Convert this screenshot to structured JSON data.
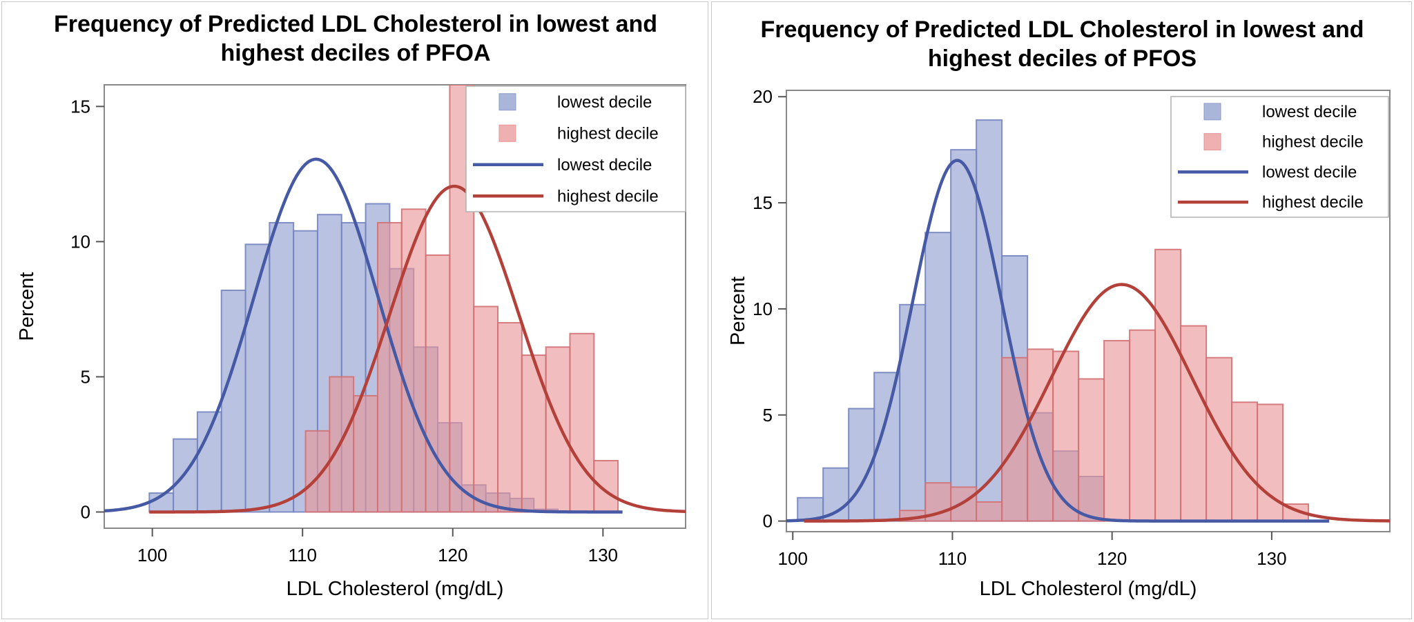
{
  "chart_data": [
    {
      "type": "bar",
      "title_lines": [
        "Frequency of Predicted LDL Cholesterol in lowest and",
        "highest deciles of PFOA"
      ],
      "xlabel": "LDL Cholesterol (mg/dL)",
      "ylabel": "Percent",
      "xlim": [
        96.8,
        135.5
      ],
      "ylim": [
        -0.6,
        15.8
      ],
      "xticks": [
        "100",
        "110",
        "120",
        "130"
      ],
      "yticks": [
        "0",
        "5",
        "10",
        "15"
      ],
      "bin_width": 1.6,
      "grid": false,
      "legend_position": "top-right",
      "legend": [
        {
          "label": "lowest decile",
          "kind": "bar-swatch",
          "color": "#8e9cce"
        },
        {
          "label": "highest decile",
          "kind": "bar-swatch",
          "color": "#e89596"
        },
        {
          "label": "lowest decile",
          "kind": "line",
          "color": "#4659a5"
        },
        {
          "label": "highest decile",
          "kind": "line",
          "color": "#b4403a"
        }
      ],
      "series": [
        {
          "name": "lowest decile",
          "kind": "histogram",
          "color": "#8e9cce",
          "edge": "#7585c0",
          "bin_starts": [
            99.8,
            101.4,
            103.0,
            104.6,
            106.2,
            107.8,
            109.4,
            111.0,
            112.6,
            114.2,
            115.8,
            117.4,
            119.0,
            120.6,
            122.2,
            123.8,
            125.4
          ],
          "values": [
            0.7,
            2.7,
            3.7,
            8.2,
            9.9,
            10.7,
            10.4,
            11.0,
            10.7,
            11.4,
            9.0,
            6.1,
            3.3,
            1.0,
            0.7,
            0.5,
            0.1
          ]
        },
        {
          "name": "highest decile",
          "kind": "histogram",
          "color": "#e89596",
          "edge": "#d27173",
          "bin_starts": [
            110.2,
            111.8,
            113.4,
            115.0,
            116.6,
            118.2,
            119.8,
            121.4,
            123.0,
            124.6,
            126.2,
            127.8,
            129.4
          ],
          "values": [
            3.0,
            5.0,
            4.3,
            10.7,
            11.2,
            9.5,
            15.8,
            7.6,
            7.0,
            5.8,
            6.1,
            6.6,
            1.9
          ]
        },
        {
          "name": "lowest decile",
          "kind": "normal-curve",
          "color": "#4659a5",
          "mean": 110.9,
          "sd": 4.15,
          "peak": 13.05,
          "x_range": [
            96.8,
            131.3
          ]
        },
        {
          "name": "highest decile",
          "kind": "normal-curve",
          "color": "#b4403a",
          "mean": 120.1,
          "sd": 4.3,
          "peak": 12.05,
          "x_range": [
            99.8,
            135.5
          ]
        }
      ]
    },
    {
      "type": "bar",
      "title_lines": [
        "Frequency of Predicted LDL Cholesterol in lowest and",
        "highest deciles of PFOS"
      ],
      "xlabel": "LDL Cholesterol (mg/dL)",
      "ylabel": "Percent",
      "xlim": [
        99.6,
        137.4
      ],
      "ylim": [
        -0.5,
        20.3
      ],
      "xticks": [
        "100",
        "110",
        "120",
        "130"
      ],
      "yticks": [
        "0",
        "5",
        "10",
        "15",
        "20"
      ],
      "bin_width": 1.6,
      "grid": false,
      "legend_position": "top-right",
      "legend": [
        {
          "label": "lowest decile",
          "kind": "bar-swatch",
          "color": "#8e9cce"
        },
        {
          "label": "highest decile",
          "kind": "bar-swatch",
          "color": "#e89596"
        },
        {
          "label": "lowest decile",
          "kind": "line",
          "color": "#4659a5"
        },
        {
          "label": "highest decile",
          "kind": "line",
          "color": "#b4403a"
        }
      ],
      "series": [
        {
          "name": "lowest decile",
          "kind": "histogram",
          "color": "#8e9cce",
          "edge": "#7585c0",
          "bin_starts": [
            100.3,
            101.9,
            103.5,
            105.1,
            106.7,
            108.3,
            109.9,
            111.5,
            113.1,
            114.7,
            116.3,
            117.9
          ],
          "values": [
            1.1,
            2.5,
            5.3,
            7.0,
            10.2,
            13.6,
            17.5,
            18.9,
            12.5,
            5.1,
            3.3,
            2.1
          ]
        },
        {
          "name": "highest decile",
          "kind": "histogram",
          "color": "#e89596",
          "edge": "#d27173",
          "bin_starts": [
            106.7,
            108.3,
            109.9,
            111.5,
            113.1,
            114.7,
            116.3,
            117.9,
            119.5,
            121.1,
            122.7,
            124.3,
            125.9,
            127.5,
            129.1,
            130.7
          ],
          "values": [
            0.5,
            1.8,
            1.6,
            0.9,
            7.7,
            8.1,
            8.0,
            6.7,
            8.5,
            9.0,
            12.8,
            9.2,
            7.7,
            5.6,
            5.5,
            0.8
          ]
        },
        {
          "name": "lowest decile",
          "kind": "normal-curve",
          "color": "#4659a5",
          "mean": 110.3,
          "sd": 2.8,
          "peak": 17.0,
          "x_range": [
            99.6,
            133.6
          ]
        },
        {
          "name": "highest decile",
          "kind": "normal-curve",
          "color": "#b4403a",
          "mean": 120.6,
          "sd": 4.4,
          "peak": 11.15,
          "x_range": [
            100.7,
            137.4
          ]
        }
      ]
    }
  ]
}
